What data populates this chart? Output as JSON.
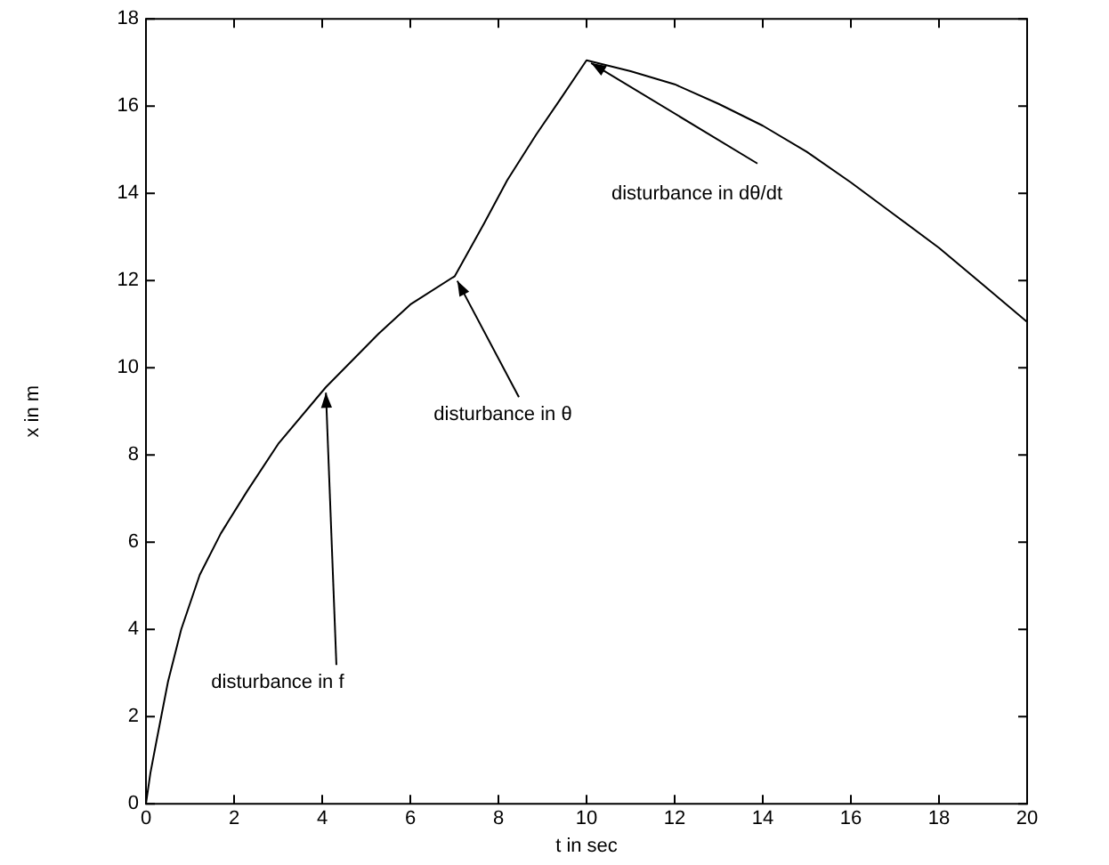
{
  "chart_data": {
    "type": "line",
    "xlabel": "t in sec",
    "ylabel": "x in m",
    "x": [
      0,
      0.1,
      0.25,
      0.5,
      0.8,
      1.22,
      1.7,
      2.29,
      3,
      4.08,
      5.28,
      6,
      7.01,
      7.67,
      8.2,
      8.86,
      9.4,
      10,
      11,
      12,
      13,
      14,
      15,
      16,
      17,
      18,
      19,
      20
    ],
    "series": [
      {
        "color": "#000000",
        "values": [
          0,
          0.7,
          1.5,
          2.8,
          4.0,
          5.25,
          6.2,
          7.16,
          8.25,
          9.55,
          10.78,
          11.45,
          12.1,
          13.3,
          14.3,
          15.35,
          16.15,
          17.05,
          16.8,
          16.5,
          16.05,
          15.55,
          14.95,
          14.25,
          13.5,
          12.75,
          11.9,
          11.05
        ]
      }
    ],
    "xlim": [
      0,
      20
    ],
    "xticks": [
      0,
      2,
      4,
      6,
      8,
      10,
      12,
      14,
      16,
      18,
      20
    ],
    "ylim": [
      0,
      18
    ],
    "yticks": [
      0,
      2,
      4,
      6,
      8,
      10,
      12,
      14,
      16,
      18
    ],
    "grid": false,
    "legend": false,
    "marker": "none",
    "line_style": "solid",
    "annotations": [
      {
        "text": "disturbance in f",
        "x": 4.08,
        "y": 9.55
      },
      {
        "text": "disturbance in θ",
        "x": 7.01,
        "y": 12.1
      },
      {
        "text": "disturbance in dθ/dt",
        "x": 10,
        "y": 17.05
      }
    ]
  }
}
